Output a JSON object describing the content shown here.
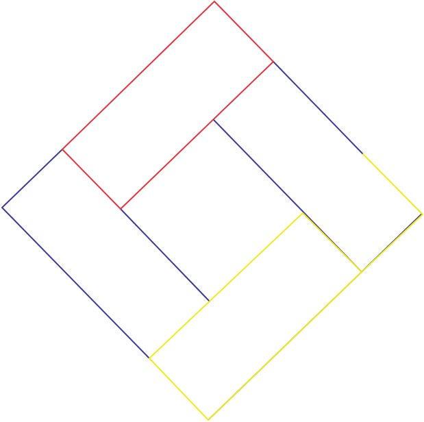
{
  "colors": {
    "background": "#ffffff",
    "red": "#e8323c",
    "blue": "#3b3c9c",
    "yellow": "#f2ea1e"
  },
  "rectangles": [
    {
      "name": "top-red-rectangle",
      "color": "red"
    },
    {
      "name": "left-blue-rectangle",
      "color": "blue"
    },
    {
      "name": "right-blue-rectangle",
      "color": "blue"
    },
    {
      "name": "bottom-yellow-rectangle",
      "color": "yellow"
    }
  ]
}
